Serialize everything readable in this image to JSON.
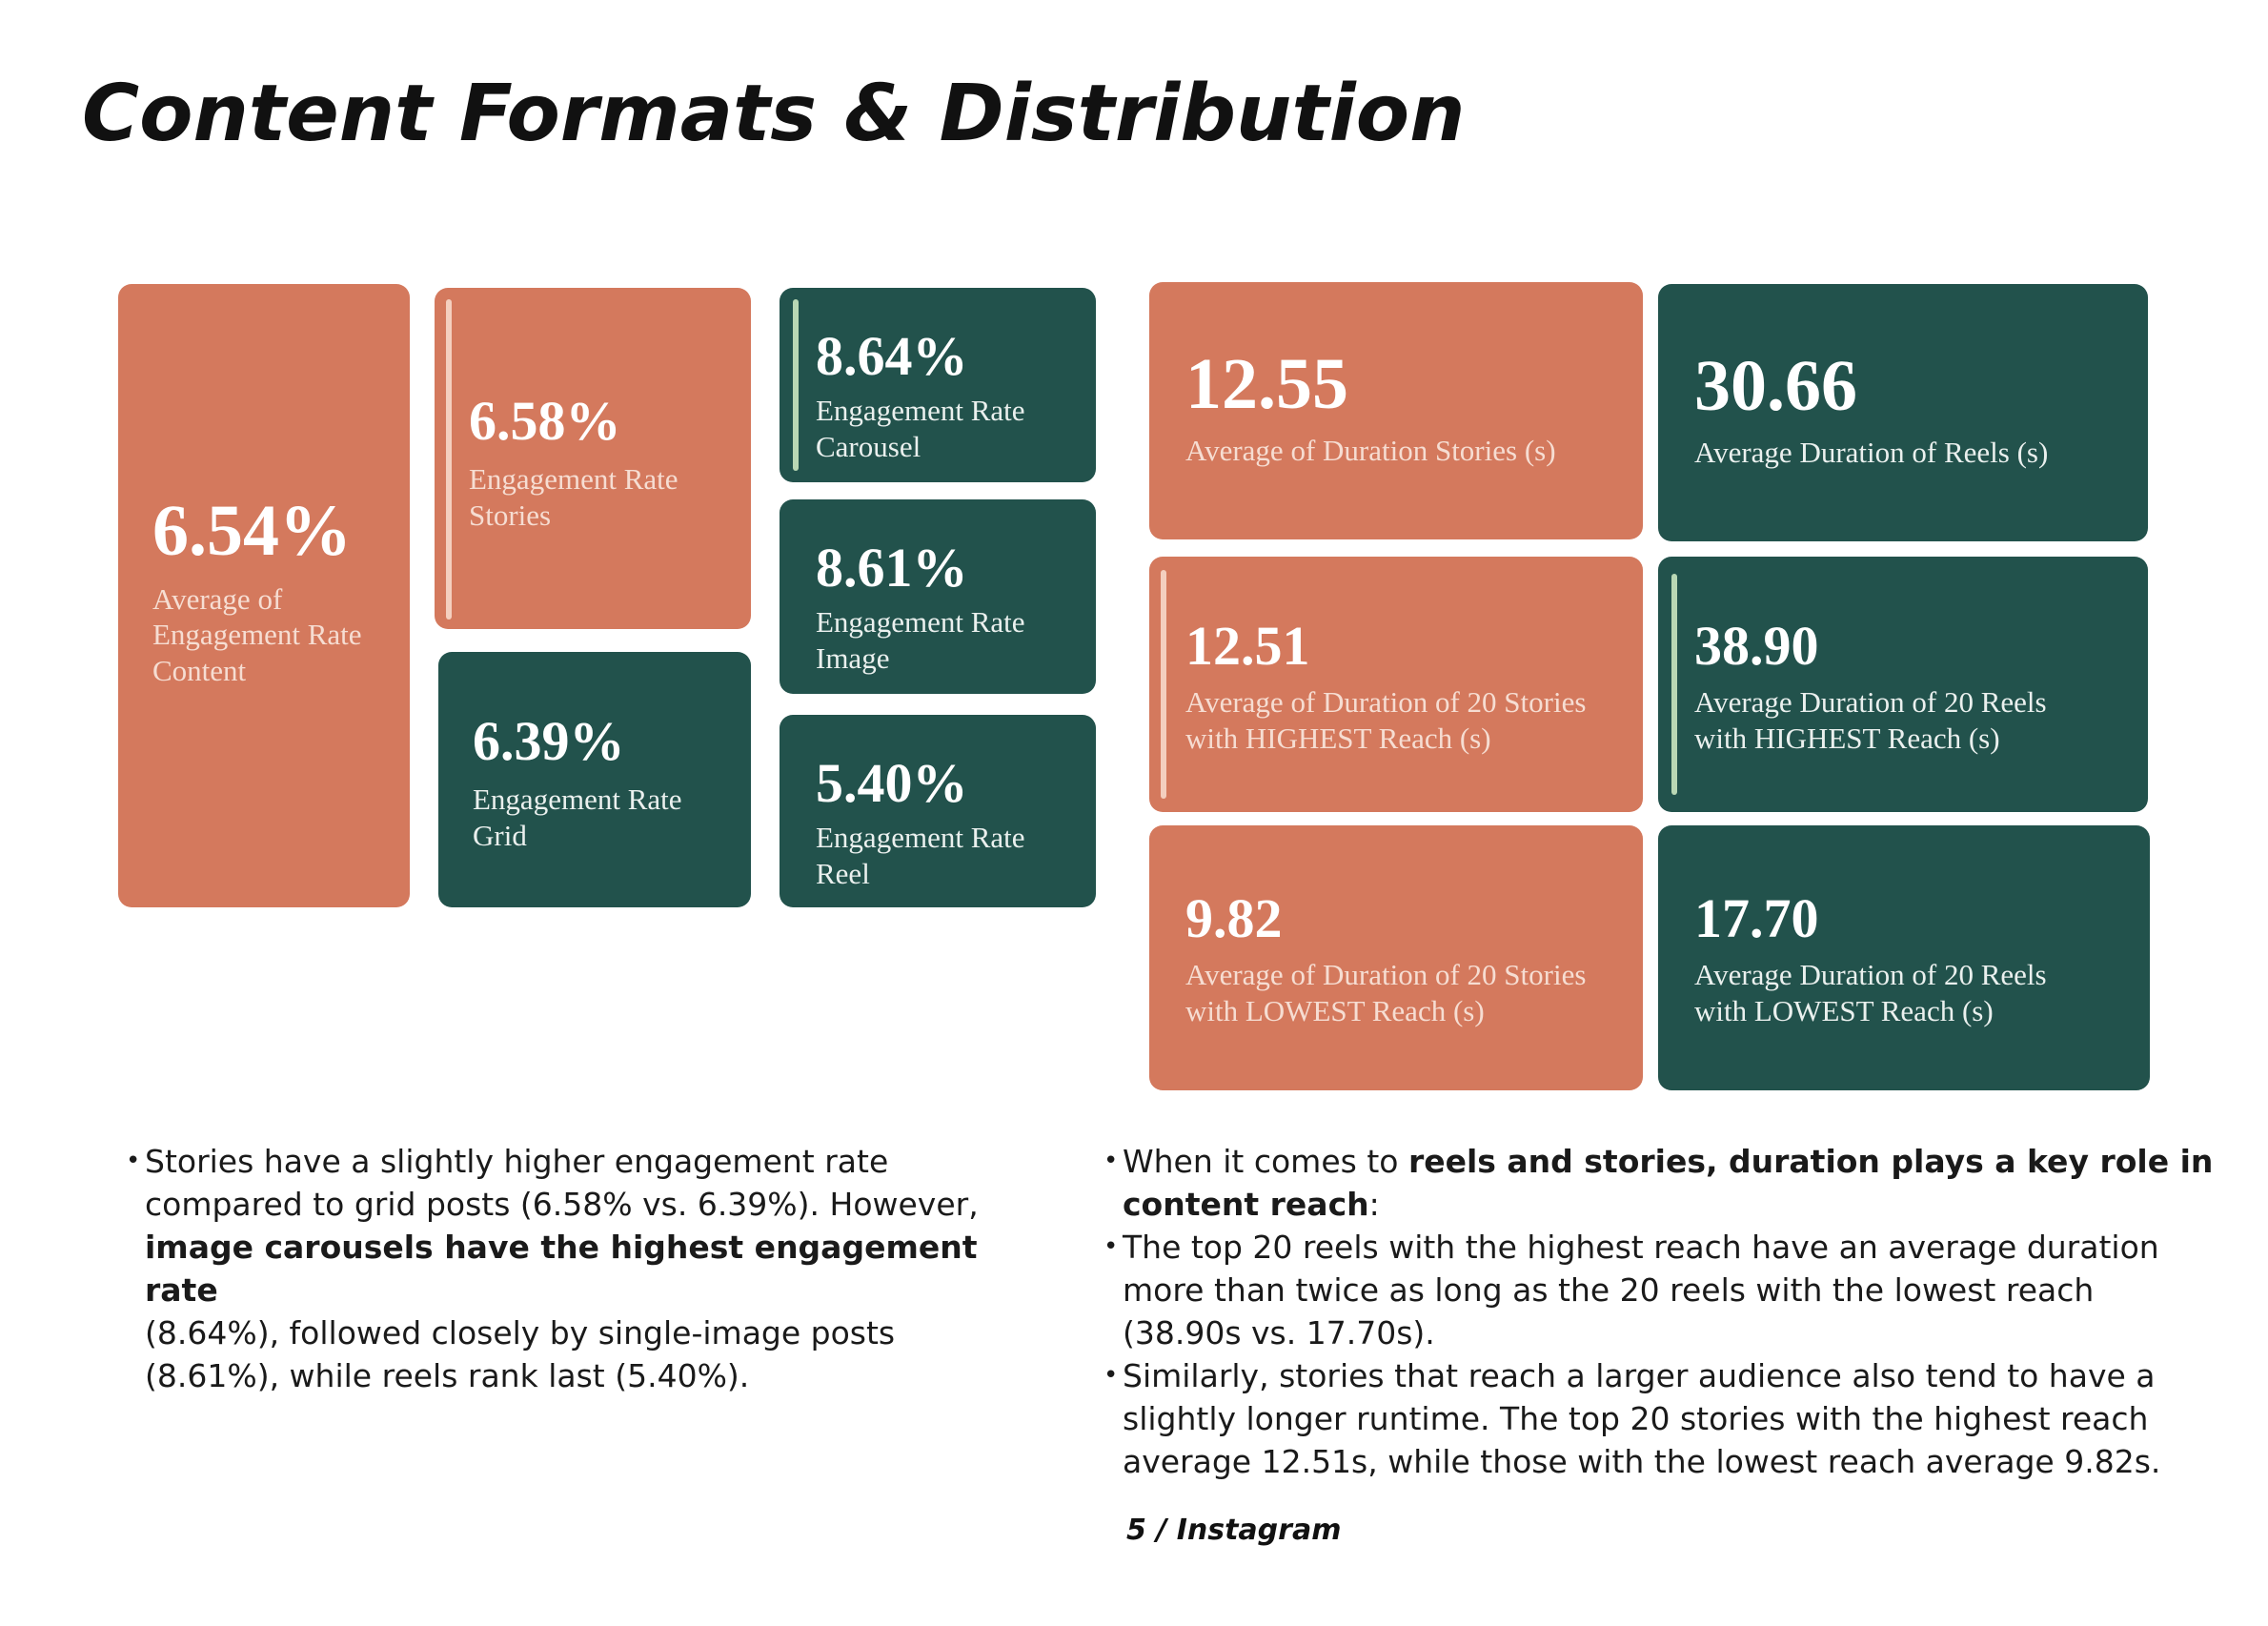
{
  "page": {
    "title": "Content Formats & Distribution",
    "footer": "5 / Instagram"
  },
  "colors": {
    "coral": "#D4795D",
    "green": "#22524C",
    "accent_peach": "#F4CFBF",
    "accent_mint": "#B9D7B4"
  },
  "engagement": {
    "overall": {
      "value": "6.54%",
      "label_1": "Average of",
      "label_2": "Engagement Rate",
      "label_3": "Content"
    },
    "stories": {
      "value": "6.58%",
      "label_1": "Engagement Rate",
      "label_2": "Stories"
    },
    "grid": {
      "value": "6.39%",
      "label_1": "Engagement Rate",
      "label_2": "Grid"
    },
    "carousel": {
      "value": "8.64%",
      "label_1": "Engagement Rate",
      "label_2": "Carousel"
    },
    "image": {
      "value": "8.61%",
      "label_1": "Engagement Rate",
      "label_2": "Image"
    },
    "reel": {
      "value": "5.40%",
      "label_1": "Engagement Rate",
      "label_2": "Reel"
    }
  },
  "duration": {
    "stories_avg": {
      "value": "12.55",
      "label_1": "Average of Duration Stories (s)"
    },
    "reels_avg": {
      "value": "30.66",
      "label_1": "Average Duration of Reels (s)"
    },
    "stories_high": {
      "value": "12.51",
      "label_1": "Average of Duration of 20 Stories",
      "label_2": "with HIGHEST Reach (s)"
    },
    "reels_high": {
      "value": "38.90",
      "label_1": "Average Duration of 20 Reels",
      "label_2": "with HIGHEST Reach (s)"
    },
    "stories_low": {
      "value": "9.82",
      "label_1": "Average of Duration of 20 Stories",
      "label_2": "with LOWEST Reach (s)"
    },
    "reels_low": {
      "value": "17.70",
      "label_1": "Average Duration of 20 Reels",
      "label_2": "with LOWEST Reach (s)"
    }
  },
  "notes_left": {
    "b1_t1": "Stories have a slightly higher engagement rate",
    "b1_t2": "compared to grid posts (6.58% vs. 6.39%). However,",
    "b1_bold": "image carousels have the highest engagement rate",
    "b1_t3": "(8.64%), followed closely by single-image posts",
    "b1_t4": "(8.61%), while reels rank last (5.40%)."
  },
  "notes_right": {
    "b1_t1": "When it comes to ",
    "b1_bold1": "reels and stories, duration plays a key role in",
    "b1_bold2": "content reach",
    "b1_t2": ":",
    "b2_t1": "The top 20 reels with the highest reach have an average duration",
    "b2_t2": "more than twice as long as the 20 reels with the lowest reach",
    "b2_t3": "(38.90s vs. 17.70s).",
    "b3_t1": "Similarly, stories that reach a larger audience also tend to have a",
    "b3_t2": "slightly longer runtime. The top 20 stories with the highest reach",
    "b3_t3": "average 12.51s, while those with the lowest reach average 9.82s."
  }
}
